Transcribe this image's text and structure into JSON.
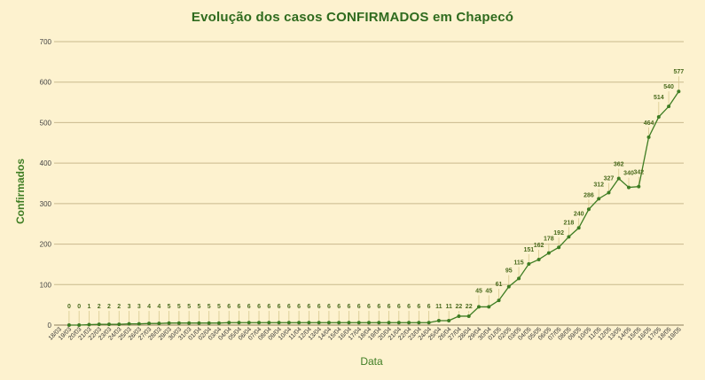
{
  "chart_data": {
    "type": "line",
    "title": "Evolução dos casos CONFIRMADOS em Chapecó",
    "xlabel": "Data",
    "ylabel": "Confirmados",
    "ylim": [
      0,
      700
    ],
    "yticks": [
      0,
      100,
      200,
      300,
      400,
      500,
      600,
      700
    ],
    "grid": true,
    "legend": "none",
    "colors": {
      "line": "#3e7d23",
      "title": "#2f6b1e",
      "background": "#fdf2cf"
    },
    "categories": [
      "18/03",
      "19/03",
      "20/03",
      "21/03",
      "22/03",
      "23/03",
      "24/03",
      "25/03",
      "26/03",
      "27/03",
      "28/03",
      "29/03",
      "30/03",
      "31/03",
      "01/04",
      "02/04",
      "03/04",
      "04/04",
      "05/04",
      "06/04",
      "07/04",
      "08/04",
      "09/04",
      "10/04",
      "11/04",
      "12/04",
      "13/04",
      "14/04",
      "15/04",
      "16/04",
      "17/04",
      "18/04",
      "19/04",
      "20/04",
      "21/04",
      "22/04",
      "23/04",
      "24/04",
      "25/04",
      "26/04",
      "27/04",
      "28/04",
      "29/04",
      "30/04",
      "01/05",
      "02/05",
      "03/05",
      "04/05",
      "05/05",
      "06/05",
      "07/05",
      "08/05",
      "09/05",
      "10/05",
      "11/05",
      "12/05",
      "13/05",
      "14/05",
      "15/05",
      "16/05",
      "17/05",
      "18/05",
      "19/05"
    ],
    "series": [
      {
        "values": [
          null,
          0,
          0,
          1,
          2,
          2,
          2,
          3,
          3,
          4,
          4,
          5,
          5,
          5,
          5,
          5,
          5,
          6,
          6,
          6,
          6,
          6,
          6,
          6,
          6,
          6,
          6,
          6,
          6,
          6,
          6,
          6,
          6,
          6,
          6,
          6,
          6,
          6,
          11,
          11,
          22,
          22,
          45,
          45,
          61,
          95,
          115,
          151,
          162,
          178,
          192,
          218,
          240,
          286,
          312,
          327,
          362,
          340,
          342,
          464,
          514,
          540,
          577
        ]
      }
    ]
  }
}
